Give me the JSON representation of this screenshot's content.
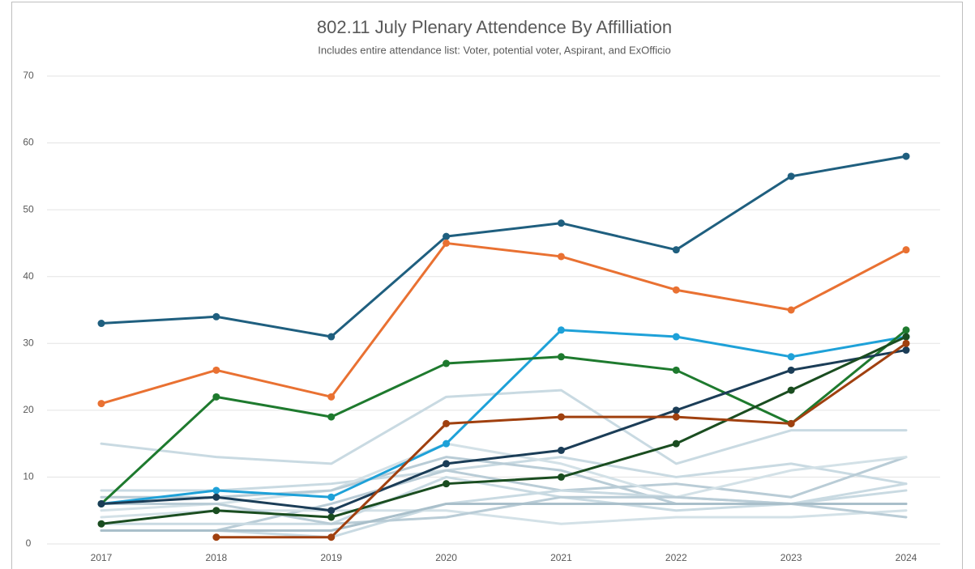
{
  "chart_data": {
    "type": "line",
    "title": "802.11 July Plenary Attendence By Affilliation",
    "subtitle": "Includes entire attendance list: Voter, potential voter, Aspirant, and ExOfficio",
    "categories": [
      "2017",
      "2018",
      "2019",
      "2020",
      "2021",
      "2022",
      "2023",
      "2024"
    ],
    "ylim": [
      0,
      70
    ],
    "yticks": [
      0,
      10,
      20,
      30,
      40,
      50,
      60,
      70
    ],
    "grid": true,
    "series": [
      {
        "color": "#c9dae2",
        "values": [
          15,
          13,
          12,
          22,
          23,
          12,
          17,
          17
        ]
      },
      {
        "color": "#c9dae2",
        "values": [
          8,
          8,
          9,
          11,
          13,
          10,
          12,
          9
        ]
      },
      {
        "color": "#b9ccd6",
        "values": [
          2,
          2,
          6,
          11,
          8,
          9,
          7,
          13
        ]
      },
      {
        "color": "#d3e1e7",
        "values": [
          5,
          6,
          8,
          15,
          12,
          7,
          11,
          13
        ]
      },
      {
        "color": "#b9ccd6",
        "values": [
          7,
          7,
          8,
          13,
          11,
          6,
          6,
          6
        ]
      },
      {
        "color": "#c9dae2",
        "values": [
          2,
          2,
          1,
          6,
          8,
          7,
          6,
          9
        ]
      },
      {
        "color": "#d3e1e7",
        "values": [
          4,
          5,
          5,
          5,
          3,
          4,
          4,
          5
        ]
      },
      {
        "color": "#c9dae2",
        "values": [
          3,
          3,
          3,
          10,
          7,
          5,
          6,
          8
        ]
      },
      {
        "color": "#b9ccd6",
        "values": [
          6,
          6,
          3,
          4,
          7,
          7,
          6,
          4
        ]
      },
      {
        "color": "#a9bfca",
        "values": [
          2,
          2,
          2,
          6,
          6,
          6,
          6,
          6
        ]
      },
      {
        "color": "#1f5f7f",
        "values": [
          33,
          34,
          31,
          46,
          48,
          44,
          55,
          58
        ],
        "markers": true
      },
      {
        "color": "#e97132",
        "values": [
          21,
          26,
          22,
          45,
          43,
          38,
          35,
          44
        ],
        "markers": true
      },
      {
        "color": "#1ea1d8",
        "values": [
          6,
          8,
          7,
          15,
          32,
          31,
          28,
          31
        ],
        "markers": true
      },
      {
        "color": "#1e7a2e",
        "values": [
          6,
          22,
          19,
          27,
          28,
          26,
          18,
          32
        ],
        "markers": true
      },
      {
        "color": "#1b3d57",
        "values": [
          6,
          7,
          5,
          12,
          14,
          20,
          26,
          29
        ],
        "markers": true
      },
      {
        "color": "#1a4d20",
        "values": [
          3,
          5,
          4,
          9,
          10,
          15,
          23,
          31
        ],
        "markers": true
      },
      {
        "color": "#a0400f",
        "values": [
          null,
          1,
          1,
          18,
          19,
          19,
          18,
          30
        ],
        "markers": true
      }
    ]
  }
}
